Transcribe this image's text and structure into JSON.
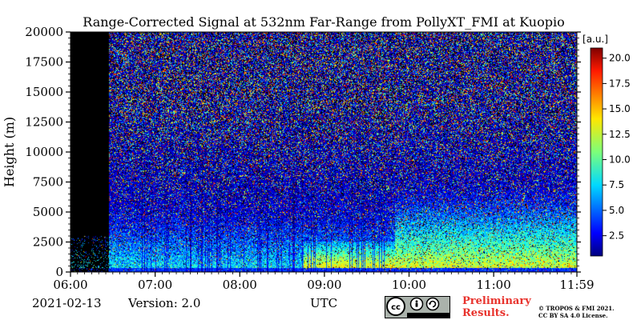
{
  "chart_data": {
    "type": "heatmap",
    "title": "Range-Corrected Signal at 532nm Far-Range from PollyXT_FMI at Kuopio",
    "xlabel": "UTC",
    "ylabel": "Height (m)",
    "x_ticks": [
      "06:00",
      "07:00",
      "08:00",
      "09:00",
      "10:00",
      "11:00",
      "11:59"
    ],
    "xlim": [
      "06:00",
      "11:59"
    ],
    "y_ticks": [
      0,
      2500,
      5000,
      7500,
      10000,
      12500,
      15000,
      17500,
      20000
    ],
    "ylim": [
      0,
      20000
    ],
    "colorbar": {
      "unit": "[a.u.]",
      "ticks": [
        2.5,
        5.0,
        7.5,
        10.0,
        12.5,
        15.0,
        17.5,
        20.0
      ],
      "range": [
        0.5,
        21.0
      ],
      "colormap": "jet"
    }
  },
  "footer": {
    "date": "2021-02-13",
    "version": "Version: 2.0",
    "preliminary": [
      "Preliminary",
      "Results."
    ],
    "copyright": [
      "© TROPOS & FMI 2021.",
      "CC BY SA 4.0 License."
    ],
    "license_badge": {
      "label": "cc-by-sa",
      "by": "BY",
      "sa": "SA"
    }
  }
}
